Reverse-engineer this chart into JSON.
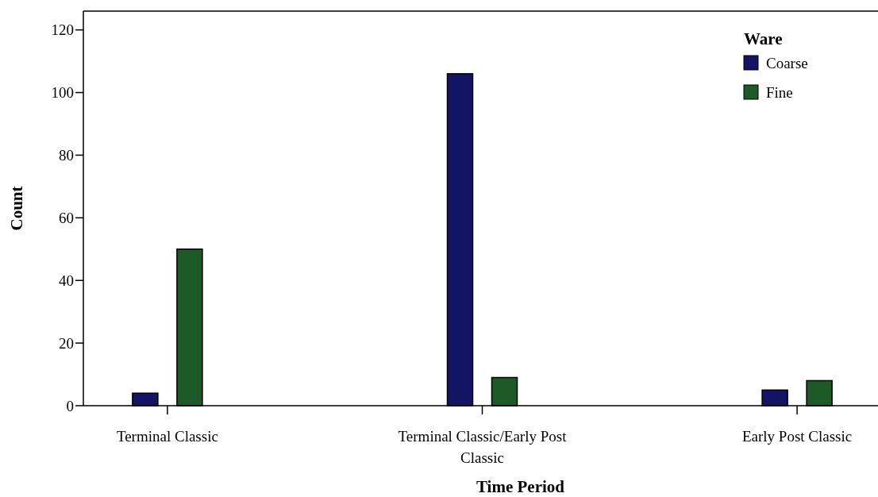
{
  "chart_data": {
    "type": "bar",
    "xlabel": "Time Period",
    "ylabel": "Count",
    "legend_title": "Ware",
    "legend": "top right",
    "categories": [
      "Terminal Classic",
      "Terminal Classic/Early Post Classic",
      "Early Post Classic"
    ],
    "series": [
      {
        "name": "Coarse",
        "color": "#141464",
        "values": [
          4,
          106,
          5
        ]
      },
      {
        "name": "Fine",
        "color": "#1e5a28",
        "values": [
          50,
          9,
          8
        ]
      }
    ],
    "ylim": [
      0,
      126
    ],
    "yticks": [
      0,
      20,
      40,
      60,
      80,
      100,
      120
    ]
  }
}
